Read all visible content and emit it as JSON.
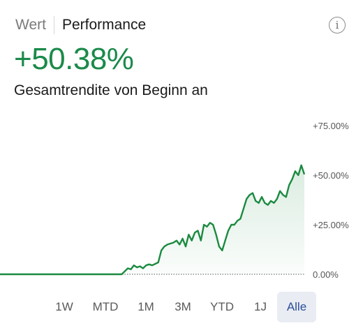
{
  "tabs": [
    {
      "label": "Wert",
      "active": false
    },
    {
      "label": "Performance",
      "active": true
    }
  ],
  "info_icon": "info-icon",
  "headline": {
    "value": "+50.38%",
    "subtitle": "Gesamtrendite von Beginn an",
    "value_color": "#1a8a4a"
  },
  "chart_data": {
    "type": "area",
    "y_ticks": [
      "+75.00%",
      "+50.00%",
      "+25.00%",
      "0.00%"
    ],
    "ylim": [
      0,
      75
    ],
    "x": [
      0,
      10,
      20,
      30,
      40,
      41,
      42,
      43,
      44,
      45,
      46,
      47,
      48,
      49,
      50,
      52,
      53,
      54,
      55,
      57,
      58,
      59,
      60,
      61,
      62,
      63,
      64,
      65,
      66,
      67,
      68,
      69,
      70,
      71,
      72,
      73,
      74,
      75,
      76,
      77,
      78,
      79,
      80,
      81,
      82,
      83,
      84,
      85,
      86,
      87,
      88,
      89,
      90,
      91,
      92,
      93,
      94,
      95,
      96,
      97,
      98,
      99,
      100
    ],
    "values": [
      0,
      0,
      0,
      0,
      0,
      1.5,
      3,
      2.5,
      4.5,
      3.5,
      4,
      3,
      4.5,
      5,
      4.5,
      6,
      12,
      14,
      15,
      16,
      17,
      15,
      18,
      14,
      20,
      17,
      21,
      22,
      17,
      25,
      24,
      26,
      25,
      20,
      14,
      12,
      17,
      22,
      25,
      25,
      27,
      28,
      33,
      38,
      40,
      41,
      37,
      36,
      39,
      36,
      35,
      37,
      36,
      38,
      42,
      40,
      39,
      45,
      48,
      52,
      50,
      55,
      50.38
    ],
    "grid": false,
    "baseline_style": "dotted",
    "line_color": "#1a8a3f",
    "fill_color": "#1a8a3f"
  },
  "ranges": {
    "options": [
      "1W",
      "MTD",
      "1M",
      "3M",
      "YTD",
      "1J",
      "Alle"
    ],
    "selected": "Alle"
  }
}
